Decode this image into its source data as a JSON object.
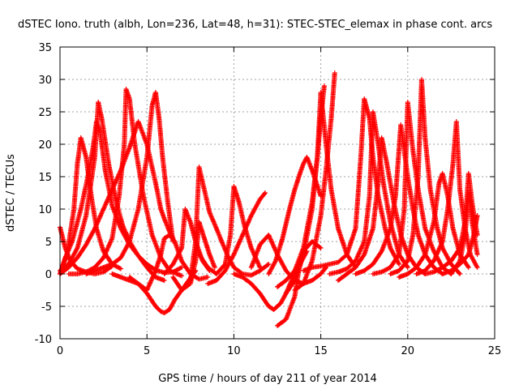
{
  "chart_data": {
    "type": "scatter",
    "title": "dSTEC Iono. truth (albh, Lon=236, Lat=48, h=31): STEC-STEC_elemax in phase cont. arcs",
    "xlabel": "GPS time / hours of day 211 of year 2014",
    "ylabel": "dSTEC  / TECUs",
    "xlim": [
      0,
      25
    ],
    "ylim": [
      -10,
      35
    ],
    "xticks": [
      "0",
      "5",
      "10",
      "15",
      "20",
      "25"
    ],
    "yticks": [
      "-10",
      "-5",
      "0",
      "5",
      "10",
      "15",
      "20",
      "25",
      "30",
      "35"
    ],
    "grid": true,
    "marker": "+",
    "color": "#ff0000",
    "series": [
      {
        "x": [
          0.0,
          0.3,
          0.6,
          1.0,
          1.5,
          2.0,
          2.5,
          3.0
        ],
        "y": [
          7.2,
          4.0,
          2.0,
          0.8,
          0.3,
          0.0,
          0.3,
          1.2
        ]
      },
      {
        "x": [
          0.0,
          0.3,
          0.7,
          1.2,
          1.6,
          1.9,
          2.1,
          2.3,
          2.6,
          3.0,
          3.5,
          4.0,
          4.5,
          5.0,
          5.5,
          6.0,
          6.5,
          7.0
        ],
        "y": [
          0.0,
          2.5,
          5.0,
          10.0,
          15.0,
          19.5,
          23.5,
          22.0,
          16.0,
          10.5,
          7.0,
          4.5,
          2.8,
          1.5,
          0.6,
          0.2,
          0.3,
          1.0
        ]
      },
      {
        "x": [
          0.0,
          0.5,
          1.0,
          1.5,
          2.0,
          2.5,
          3.0,
          3.5,
          4.0,
          4.5,
          5.0,
          5.5,
          5.8,
          6.0,
          6.3,
          6.5
        ],
        "y": [
          0.0,
          1.0,
          2.5,
          4.5,
          7.0,
          10.0,
          13.0,
          16.0,
          19.5,
          23.5,
          20.0,
          14.0,
          10.0,
          8.5,
          6.5,
          5.5
        ]
      },
      {
        "x": [
          0.0,
          0.4,
          0.8,
          1.0,
          1.2,
          1.5,
          1.8,
          2.1,
          2.5,
          3.0,
          3.5
        ],
        "y": [
          0.0,
          3.0,
          10.0,
          17.0,
          21.0,
          18.0,
          12.0,
          7.0,
          3.5,
          1.5,
          0.8
        ]
      },
      {
        "x": [
          0.0,
          0.5,
          1.0,
          1.5,
          2.0,
          2.2,
          2.4,
          2.8,
          3.2,
          3.6,
          4.0,
          4.5,
          5.0,
          5.5,
          6.0
        ],
        "y": [
          0.5,
          1.5,
          4.0,
          9.0,
          18.0,
          26.5,
          24.0,
          17.0,
          11.5,
          7.5,
          5.0,
          2.8,
          1.0,
          -0.5,
          -1.0
        ]
      },
      {
        "x": [
          0.5,
          1.0,
          1.5,
          2.0,
          2.5,
          3.0,
          3.4,
          3.7,
          3.8,
          4.0,
          4.3,
          4.8,
          5.3,
          5.8,
          6.3,
          7.0
        ],
        "y": [
          0.0,
          0.0,
          0.3,
          1.0,
          2.5,
          5.5,
          12.0,
          20.0,
          28.5,
          27.0,
          20.0,
          12.0,
          6.0,
          2.5,
          0.5,
          -0.3
        ]
      },
      {
        "x": [
          1.5,
          2.0,
          2.5,
          3.0,
          3.5,
          4.0,
          4.5,
          5.0,
          5.3,
          5.5,
          5.7,
          5.9,
          6.2,
          6.5
        ],
        "y": [
          0.0,
          0.5,
          1.0,
          1.5,
          2.5,
          5.0,
          10.0,
          18.0,
          26.0,
          28.0,
          24.0,
          18.0,
          11.0,
          5.0
        ]
      },
      {
        "x": [
          3.0,
          3.5,
          4.0,
          4.5,
          5.0,
          5.5,
          5.8,
          6.0,
          6.3,
          6.6,
          7.0,
          7.4,
          7.8
        ],
        "y": [
          0.0,
          -0.5,
          -1.0,
          -1.5,
          -3.0,
          -5.0,
          -5.8,
          -6.0,
          -5.5,
          -4.0,
          -2.5,
          -1.0,
          0.5
        ]
      },
      {
        "x": [
          4.0,
          4.5,
          5.0,
          5.5,
          5.8,
          6.0,
          6.3,
          6.6,
          7.0,
          7.5,
          8.0,
          8.5
        ],
        "y": [
          -0.5,
          -1.5,
          -2.5,
          0.5,
          3.0,
          5.5,
          6.0,
          5.0,
          2.0,
          0.0,
          -0.8,
          -0.5
        ]
      },
      {
        "x": [
          6.0,
          6.5,
          7.0,
          7.2,
          7.5,
          7.8,
          8.2,
          8.6
        ],
        "y": [
          0.0,
          1.5,
          4.0,
          10.0,
          8.0,
          5.0,
          2.0,
          0.5
        ]
      },
      {
        "x": [
          6.5,
          7.0,
          7.5,
          7.8,
          8.0,
          8.3,
          8.6,
          8.9
        ],
        "y": [
          -0.5,
          -2.5,
          -1.5,
          2.0,
          8.0,
          5.5,
          3.0,
          1.0
        ]
      },
      {
        "x": [
          7.5,
          7.8,
          8.0,
          8.3,
          8.6,
          9.0,
          9.3,
          9.7,
          10.0,
          10.5,
          11.0,
          11.5,
          12.0
        ],
        "y": [
          -1.0,
          5.0,
          16.5,
          13.0,
          9.5,
          7.0,
          5.0,
          2.5,
          1.0,
          0.0,
          -0.2,
          0.5,
          1.5
        ]
      },
      {
        "x": [
          8.0,
          8.5,
          9.0,
          9.5,
          9.8,
          10.0,
          10.3,
          10.6,
          11.0,
          11.5
        ],
        "y": [
          3.0,
          1.0,
          0.0,
          1.5,
          6.0,
          13.5,
          11.0,
          7.5,
          4.0,
          1.0
        ]
      },
      {
        "x": [
          8.5,
          9.0,
          9.5,
          10.0,
          10.5,
          11.0,
          11.5,
          11.8
        ],
        "y": [
          -1.5,
          -1.0,
          0.5,
          3.0,
          6.0,
          9.0,
          11.5,
          12.5
        ]
      },
      {
        "x": [
          10.0,
          10.5,
          11.0,
          11.5,
          12.0,
          12.3,
          12.7,
          13.0,
          13.4,
          13.8,
          14.2
        ],
        "y": [
          0.0,
          -0.5,
          -1.5,
          -3.0,
          -5.0,
          -5.5,
          -4.5,
          -3.0,
          -0.5,
          1.5,
          3.5
        ]
      },
      {
        "x": [
          11.0,
          11.5,
          12.0,
          12.5,
          13.0,
          13.5,
          14.0,
          14.5,
          15.0,
          15.3
        ],
        "y": [
          1.0,
          4.5,
          6.0,
          3.0,
          0.5,
          -1.0,
          -1.5,
          -1.0,
          0.0,
          1.0
        ]
      },
      {
        "x": [
          12.5,
          13.0,
          13.5,
          13.7,
          14.0,
          14.5,
          15.0
        ],
        "y": [
          -8.0,
          -7.0,
          -3.5,
          0.0,
          3.5,
          5.0,
          4.0
        ]
      },
      {
        "x": [
          12.0,
          12.4,
          12.8,
          13.2,
          13.5,
          13.8,
          14.0,
          14.2,
          14.5,
          15.0
        ],
        "y": [
          0.0,
          2.0,
          5.5,
          10.0,
          13.0,
          15.5,
          17.0,
          18.0,
          16.0,
          12.0
        ]
      },
      {
        "x": [
          12.5,
          13.0,
          13.5,
          14.0,
          14.5,
          14.8,
          15.0,
          15.2
        ],
        "y": [
          -2.0,
          -1.0,
          0.5,
          4.0,
          11.0,
          18.0,
          24.0,
          29.0
        ]
      },
      {
        "x": [
          13.5,
          14.0,
          14.5,
          15.0,
          15.3,
          15.6,
          15.8
        ],
        "y": [
          -2.5,
          -1.5,
          2.0,
          9.0,
          16.0,
          24.0,
          31.0
        ]
      },
      {
        "x": [
          13.0,
          13.5,
          14.0,
          14.5,
          14.8,
          15.0,
          15.3,
          15.6,
          16.0,
          16.5,
          17.0
        ],
        "y": [
          -3.0,
          -1.0,
          3.0,
          10.0,
          18.0,
          28.0,
          20.0,
          13.0,
          7.0,
          3.0,
          1.0
        ]
      },
      {
        "x": [
          14.0,
          14.5,
          15.0,
          15.5,
          16.0,
          16.5,
          17.0,
          17.3,
          17.5,
          17.8,
          18.0,
          18.3,
          18.7,
          19.0,
          19.5
        ],
        "y": [
          0.5,
          1.0,
          1.2,
          1.5,
          1.8,
          3.0,
          7.0,
          18.0,
          27.0,
          24.0,
          18.0,
          12.0,
          7.0,
          4.0,
          1.5
        ]
      },
      {
        "x": [
          15.5,
          16.0,
          16.5,
          17.0,
          17.5,
          17.8,
          18.0,
          18.3,
          18.6,
          19.0,
          19.5,
          20.0
        ],
        "y": [
          0.0,
          0.3,
          0.8,
          2.0,
          5.0,
          12.0,
          25.0,
          20.0,
          14.0,
          8.0,
          3.0,
          1.0
        ]
      },
      {
        "x": [
          16.0,
          16.5,
          17.0,
          17.5,
          18.0,
          18.3,
          18.5,
          18.8,
          19.2,
          19.6,
          20.0,
          20.5,
          21.0
        ],
        "y": [
          -1.0,
          0.0,
          1.0,
          3.0,
          7.0,
          14.0,
          21.0,
          17.0,
          11.0,
          6.0,
          3.0,
          1.0,
          0.0
        ]
      },
      {
        "x": [
          17.0,
          17.5,
          18.0,
          18.5,
          19.0,
          19.3,
          19.6,
          20.0,
          20.3,
          20.6,
          21.0,
          21.5,
          22.0
        ],
        "y": [
          0.0,
          0.5,
          1.5,
          3.5,
          7.0,
          12.0,
          23.0,
          15.0,
          10.0,
          6.0,
          3.0,
          1.0,
          0.0
        ]
      },
      {
        "x": [
          18.0,
          18.5,
          19.0,
          19.5,
          19.8,
          20.0,
          20.3,
          20.6,
          21.0,
          21.5,
          22.0,
          22.5
        ],
        "y": [
          0.0,
          0.3,
          1.0,
          3.0,
          10.0,
          26.5,
          19.0,
          13.0,
          7.0,
          3.5,
          1.0,
          0.0
        ]
      },
      {
        "x": [
          19.0,
          19.5,
          20.0,
          20.3,
          20.6,
          20.8,
          21.0,
          21.3,
          21.7,
          22.0,
          22.5,
          23.0
        ],
        "y": [
          0.0,
          0.5,
          2.0,
          6.0,
          15.0,
          30.0,
          21.0,
          13.0,
          7.0,
          4.0,
          1.5,
          0.0
        ]
      },
      {
        "x": [
          19.5,
          20.0,
          20.5,
          21.0,
          21.5,
          21.8,
          22.0,
          22.3,
          22.6,
          23.0,
          23.5
        ],
        "y": [
          -0.5,
          0.0,
          1.0,
          3.0,
          8.0,
          14.0,
          15.5,
          12.0,
          7.0,
          3.0,
          1.0
        ]
      },
      {
        "x": [
          20.5,
          21.0,
          21.5,
          22.0,
          22.3,
          22.6,
          22.8,
          23.0,
          23.3,
          23.6,
          24.0
        ],
        "y": [
          0.0,
          0.5,
          2.0,
          5.0,
          10.0,
          17.0,
          23.5,
          13.0,
          7.0,
          3.0,
          1.0
        ]
      },
      {
        "x": [
          21.0,
          21.5,
          22.0,
          22.5,
          23.0,
          23.3,
          23.5,
          23.7,
          24.0
        ],
        "y": [
          0.0,
          0.3,
          1.0,
          2.0,
          4.0,
          8.0,
          15.5,
          11.0,
          6.0
        ]
      },
      {
        "x": [
          22.0,
          22.5,
          23.0,
          23.5,
          23.8,
          24.0
        ],
        "y": [
          0.0,
          0.5,
          1.5,
          3.0,
          6.0,
          9.0
        ]
      },
      {
        "x": [
          22.5,
          23.0,
          23.3,
          23.5,
          23.7,
          24.0
        ],
        "y": [
          0.0,
          2.0,
          6.0,
          12.5,
          8.0,
          3.0
        ]
      }
    ]
  }
}
